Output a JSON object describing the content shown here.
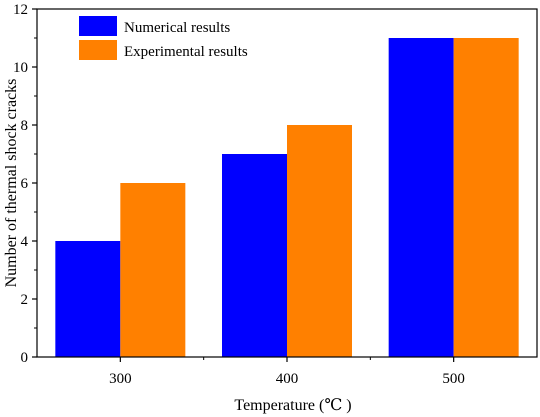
{
  "chart_data": {
    "type": "bar",
    "categories": [
      "300",
      "400",
      "500"
    ],
    "series": [
      {
        "name": "Numerical results",
        "values": [
          4,
          7,
          11
        ],
        "color": "#0000FF"
      },
      {
        "name": "Experimental results",
        "values": [
          6,
          8,
          11
        ],
        "color": "#FF8000"
      }
    ],
    "xlabel": "Temperature (℃ )",
    "ylabel": "Number of thermal shock cracks",
    "ylim": [
      0,
      12
    ],
    "yticks": [
      "0",
      "2",
      "4",
      "6",
      "8",
      "10",
      "12"
    ],
    "grid": false,
    "legend_position": "top-left"
  }
}
